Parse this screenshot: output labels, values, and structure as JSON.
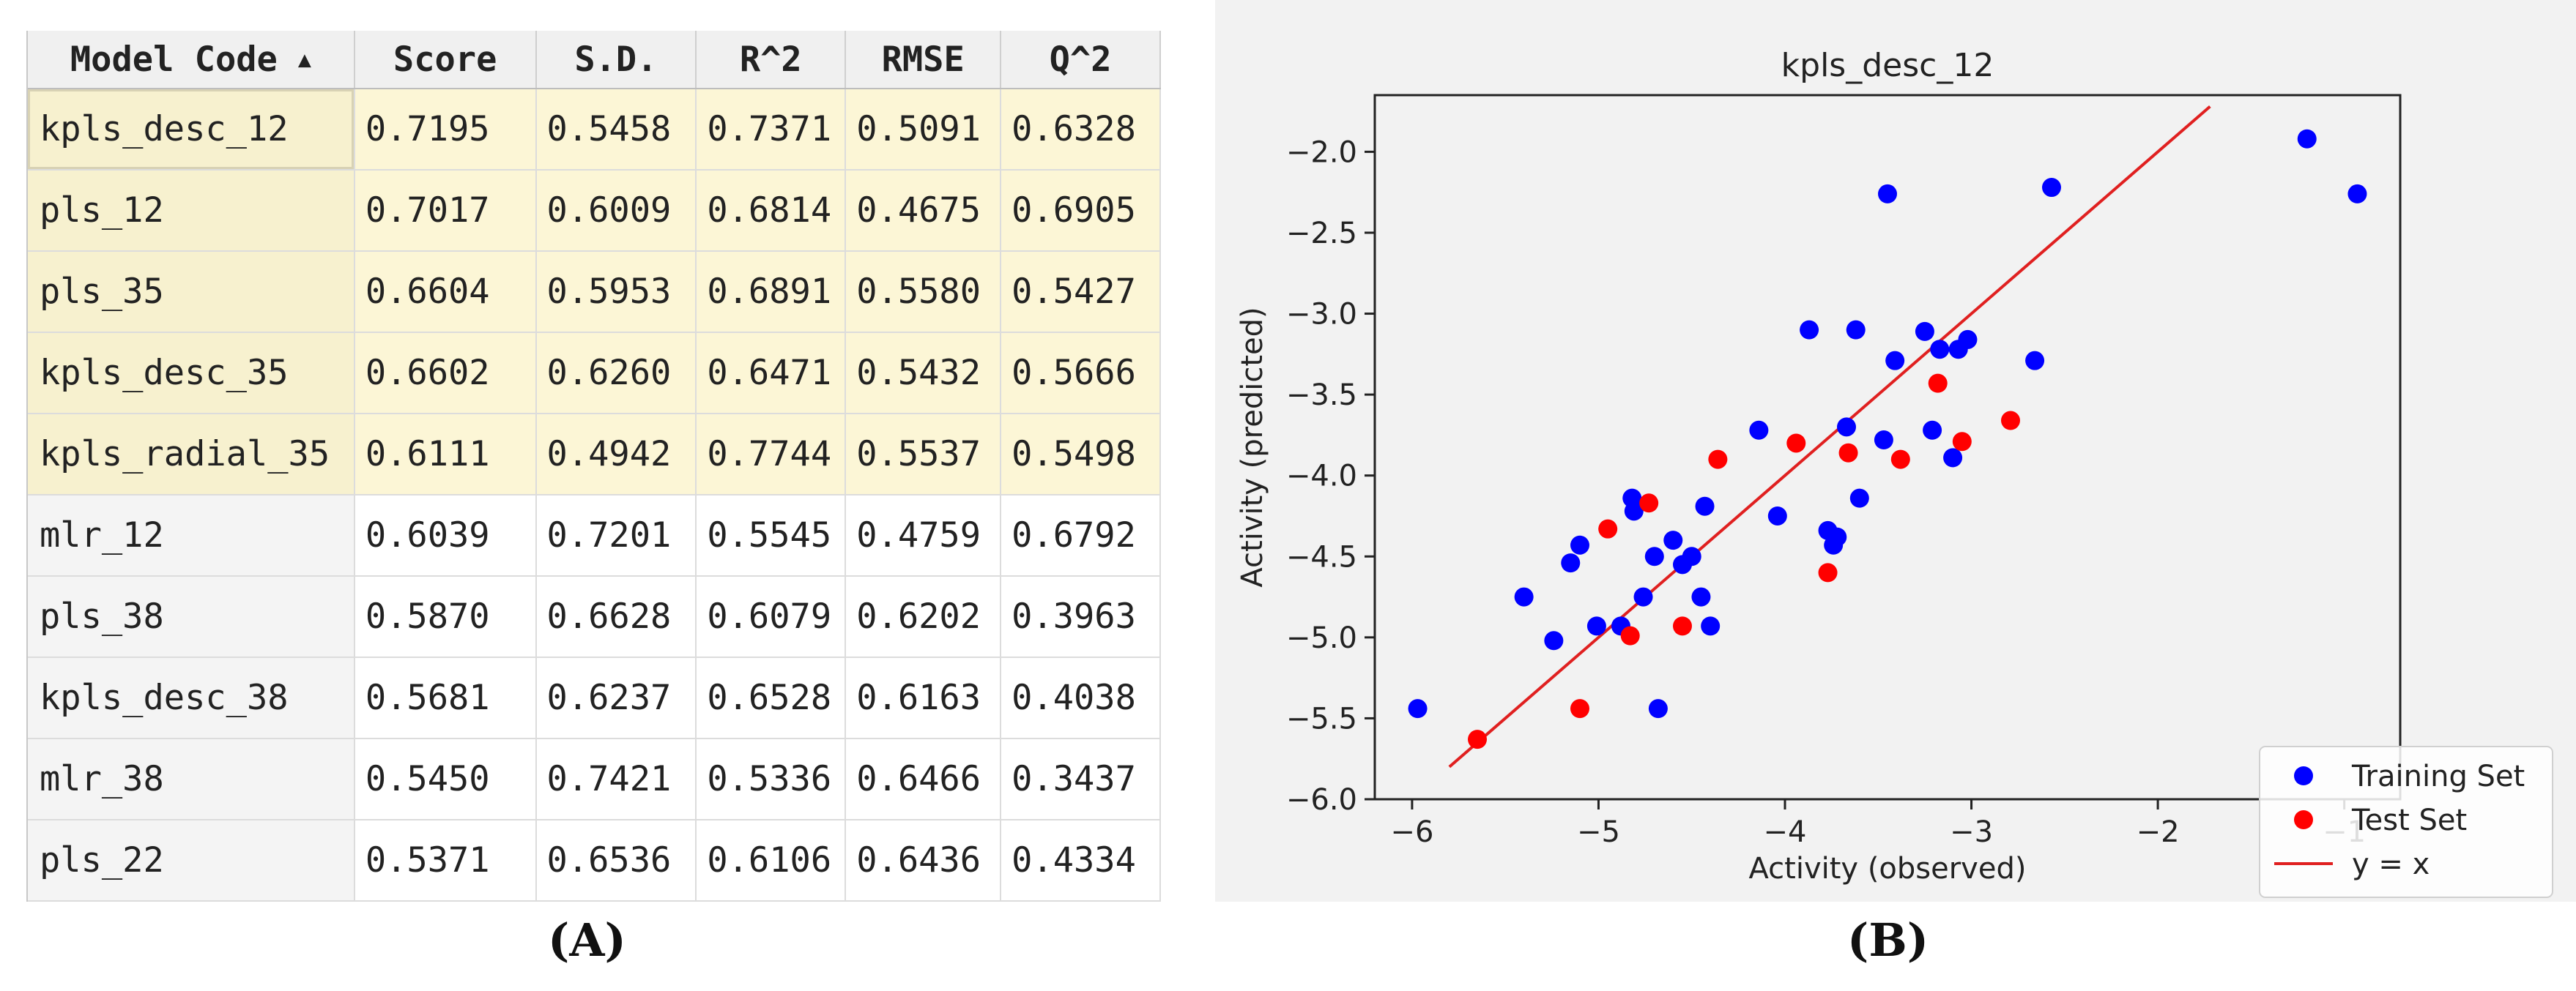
{
  "panel_labels": {
    "a": "(A)",
    "b": "(B)"
  },
  "table": {
    "columns": [
      "Model Code",
      "Score",
      "S.D.",
      "R^2",
      "RMSE",
      "Q^2"
    ],
    "sort_indicator": "▲",
    "rows": [
      {
        "model": "kpls_desc_12",
        "score": "0.7195",
        "sd": "0.5458",
        "r2": "0.7371",
        "rmse": "0.5091",
        "q2": "0.6328",
        "highlighted": true,
        "selected": true
      },
      {
        "model": "pls_12",
        "score": "0.7017",
        "sd": "0.6009",
        "r2": "0.6814",
        "rmse": "0.4675",
        "q2": "0.6905",
        "highlighted": true
      },
      {
        "model": "pls_35",
        "score": "0.6604",
        "sd": "0.5953",
        "r2": "0.6891",
        "rmse": "0.5580",
        "q2": "0.5427",
        "highlighted": true
      },
      {
        "model": "kpls_desc_35",
        "score": "0.6602",
        "sd": "0.6260",
        "r2": "0.6471",
        "rmse": "0.5432",
        "q2": "0.5666",
        "highlighted": true
      },
      {
        "model": "kpls_radial_35",
        "score": "0.6111",
        "sd": "0.4942",
        "r2": "0.7744",
        "rmse": "0.5537",
        "q2": "0.5498",
        "highlighted": true
      },
      {
        "model": "mlr_12",
        "score": "0.6039",
        "sd": "0.7201",
        "r2": "0.5545",
        "rmse": "0.4759",
        "q2": "0.6792",
        "highlighted": false
      },
      {
        "model": "pls_38",
        "score": "0.5870",
        "sd": "0.6628",
        "r2": "0.6079",
        "rmse": "0.6202",
        "q2": "0.3963",
        "highlighted": false
      },
      {
        "model": "kpls_desc_38",
        "score": "0.5681",
        "sd": "0.6237",
        "r2": "0.6528",
        "rmse": "0.6163",
        "q2": "0.4038",
        "highlighted": false
      },
      {
        "model": "mlr_38",
        "score": "0.5450",
        "sd": "0.7421",
        "r2": "0.5336",
        "rmse": "0.6466",
        "q2": "0.3437",
        "highlighted": false
      },
      {
        "model": "pls_22",
        "score": "0.5371",
        "sd": "0.6536",
        "r2": "0.6106",
        "rmse": "0.6436",
        "q2": "0.4334",
        "highlighted": false
      }
    ]
  },
  "chart_data": {
    "type": "scatter",
    "title": "kpls_desc_12",
    "xlabel": "Activity (observed)",
    "ylabel": "Activity (predicted)",
    "xlim": [
      -6.2,
      -0.7
    ],
    "ylim": [
      -6.0,
      -1.65
    ],
    "xticks": [
      -6,
      -5,
      -4,
      -3,
      -2,
      -1
    ],
    "yticks": [
      -6.0,
      -5.5,
      -5.0,
      -4.5,
      -4.0,
      -3.5,
      -3.0,
      -2.5,
      -2.0
    ],
    "tick_labels_x": [
      "−6",
      "−5",
      "−4",
      "−3",
      "−2",
      "−1"
    ],
    "tick_labels_y": [
      "−6.0",
      "−5.5",
      "−5.0",
      "−4.5",
      "−4.0",
      "−3.5",
      "−3.0",
      "−2.5",
      "−2.0"
    ],
    "grid": false,
    "legend_position": "lower-right",
    "series": [
      {
        "name": "Training Set",
        "color": "#0000ff",
        "marker": "circle",
        "points": [
          [
            -5.97,
            -5.44
          ],
          [
            -5.4,
            -4.75
          ],
          [
            -5.24,
            -5.02
          ],
          [
            -5.15,
            -4.54
          ],
          [
            -5.1,
            -4.43
          ],
          [
            -5.01,
            -4.93
          ],
          [
            -4.88,
            -4.93
          ],
          [
            -4.82,
            -4.14
          ],
          [
            -4.81,
            -4.22
          ],
          [
            -4.76,
            -4.75
          ],
          [
            -4.7,
            -4.5
          ],
          [
            -4.68,
            -5.44
          ],
          [
            -4.6,
            -4.4
          ],
          [
            -4.55,
            -4.55
          ],
          [
            -4.5,
            -4.5
          ],
          [
            -4.45,
            -4.75
          ],
          [
            -4.43,
            -4.19
          ],
          [
            -4.4,
            -4.93
          ],
          [
            -4.14,
            -3.72
          ],
          [
            -4.04,
            -4.25
          ],
          [
            -3.87,
            -3.1
          ],
          [
            -3.77,
            -4.34
          ],
          [
            -3.74,
            -4.43
          ],
          [
            -3.72,
            -4.38
          ],
          [
            -3.67,
            -3.7
          ],
          [
            -3.62,
            -3.1
          ],
          [
            -3.6,
            -4.14
          ],
          [
            -3.47,
            -3.78
          ],
          [
            -3.45,
            -2.26
          ],
          [
            -3.41,
            -3.29
          ],
          [
            -3.25,
            -3.11
          ],
          [
            -3.21,
            -3.72
          ],
          [
            -3.17,
            -3.22
          ],
          [
            -3.1,
            -3.89
          ],
          [
            -3.07,
            -3.22
          ],
          [
            -3.02,
            -3.16
          ],
          [
            -2.66,
            -3.29
          ],
          [
            -2.57,
            -2.22
          ],
          [
            -1.2,
            -1.92
          ],
          [
            -0.93,
            -2.26
          ]
        ]
      },
      {
        "name": "Test Set",
        "color": "#ff0000",
        "marker": "circle",
        "points": [
          [
            -5.65,
            -5.63
          ],
          [
            -5.1,
            -5.44
          ],
          [
            -4.95,
            -4.33
          ],
          [
            -4.83,
            -4.99
          ],
          [
            -4.73,
            -4.17
          ],
          [
            -4.55,
            -4.93
          ],
          [
            -4.36,
            -3.9
          ],
          [
            -3.94,
            -3.8
          ],
          [
            -3.77,
            -4.6
          ],
          [
            -3.66,
            -3.86
          ],
          [
            -3.38,
            -3.9
          ],
          [
            -3.18,
            -3.43
          ],
          [
            -3.05,
            -3.79
          ],
          [
            -2.79,
            -3.66
          ]
        ]
      }
    ],
    "reference_line": {
      "name": "y = x",
      "color": "#e02020",
      "x": [
        -5.8,
        -1.72
      ],
      "y": [
        -5.8,
        -1.72
      ]
    }
  }
}
